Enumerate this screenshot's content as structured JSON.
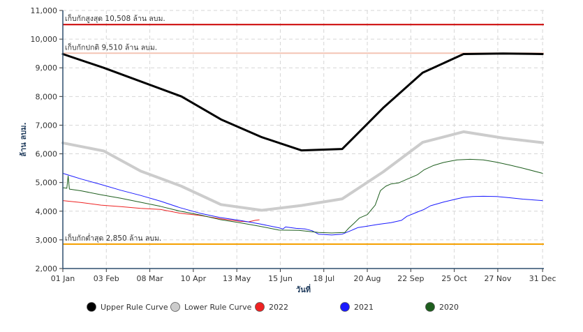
{
  "chart_data": {
    "type": "line",
    "xlabel": "วันที่",
    "ylabel": "ล้าน ลบม.",
    "ylim": [
      2000,
      11000
    ],
    "yticks": [
      2000,
      3000,
      4000,
      5000,
      6000,
      7000,
      8000,
      9000,
      10000,
      11000
    ],
    "ytick_labels": [
      "2,000",
      "3,000",
      "4,000",
      "5,000",
      "6,000",
      "7,000",
      "8,000",
      "9,000",
      "10,000",
      "11,000"
    ],
    "xlim_day": [
      1,
      366
    ],
    "xticks": [
      {
        "day": 1,
        "label": "01 Jan"
      },
      {
        "day": 34,
        "label": "03 Feb"
      },
      {
        "day": 67,
        "label": "08 Mar"
      },
      {
        "day": 100,
        "label": "10 Apr"
      },
      {
        "day": 133,
        "label": "13 May"
      },
      {
        "day": 166,
        "label": "15 Jun"
      },
      {
        "day": 199,
        "label": "18 Jul"
      },
      {
        "day": 232,
        "label": "20 Aug"
      },
      {
        "day": 265,
        "label": "22 Sep"
      },
      {
        "day": 298,
        "label": "25 Oct"
      },
      {
        "day": 331,
        "label": "27 Nov"
      },
      {
        "day": 365,
        "label": "31 Dec"
      }
    ],
    "grid": true,
    "legend_position": "bottom",
    "reference_lines": [
      {
        "label": "เก็บกักสูงสุด 10,508 ล้าน ลบม.",
        "value": 10508,
        "color": "#cc0000"
      },
      {
        "label": "เก็บกักปกติ 9,510 ล้าน ลบม.",
        "value": 9510,
        "color": "#f4c4b4"
      },
      {
        "label": "เก็บกักต่ำสุด 2,850 ล้าน ลบม.",
        "value": 2850,
        "color": "#f5a000"
      }
    ],
    "series": [
      {
        "name": "Upper Rule Curve",
        "color": "#000000",
        "width": 3,
        "points": [
          [
            1,
            9480
          ],
          [
            32,
            9000
          ],
          [
            91,
            8000
          ],
          [
            121,
            7200
          ],
          [
            152,
            6580
          ],
          [
            182,
            6120
          ],
          [
            213,
            6170
          ],
          [
            244,
            7600
          ],
          [
            274,
            8830
          ],
          [
            305,
            9480
          ],
          [
            335,
            9500
          ],
          [
            365,
            9480
          ]
        ]
      },
      {
        "name": "Lower Rule Curve",
        "color": "#cccccc",
        "width": 4,
        "points": [
          [
            1,
            6380
          ],
          [
            32,
            6100
          ],
          [
            60,
            5400
          ],
          [
            91,
            4870
          ],
          [
            121,
            4230
          ],
          [
            152,
            4030
          ],
          [
            182,
            4200
          ],
          [
            213,
            4430
          ],
          [
            244,
            5370
          ],
          [
            274,
            6400
          ],
          [
            305,
            6770
          ],
          [
            335,
            6550
          ],
          [
            365,
            6390
          ]
        ]
      },
      {
        "name": "2022",
        "color": "#ee2222",
        "width": 1,
        "points": [
          [
            1,
            4370
          ],
          [
            15,
            4300
          ],
          [
            30,
            4210
          ],
          [
            45,
            4160
          ],
          [
            60,
            4100
          ],
          [
            75,
            4060
          ],
          [
            90,
            3930
          ],
          [
            105,
            3850
          ],
          [
            120,
            3740
          ],
          [
            135,
            3650
          ],
          [
            142,
            3630
          ],
          [
            147,
            3680
          ],
          [
            150,
            3700
          ]
        ]
      },
      {
        "name": "2021",
        "color": "#1a1aff",
        "width": 1,
        "points": [
          [
            1,
            5320
          ],
          [
            15,
            5120
          ],
          [
            30,
            4930
          ],
          [
            45,
            4730
          ],
          [
            60,
            4550
          ],
          [
            75,
            4350
          ],
          [
            90,
            4120
          ],
          [
            105,
            3930
          ],
          [
            120,
            3780
          ],
          [
            135,
            3680
          ],
          [
            150,
            3560
          ],
          [
            165,
            3420
          ],
          [
            168,
            3380
          ],
          [
            170,
            3450
          ],
          [
            178,
            3400
          ],
          [
            185,
            3380
          ],
          [
            190,
            3320
          ],
          [
            195,
            3200
          ],
          [
            205,
            3170
          ],
          [
            213,
            3200
          ],
          [
            220,
            3330
          ],
          [
            225,
            3430
          ],
          [
            232,
            3480
          ],
          [
            240,
            3540
          ],
          [
            250,
            3600
          ],
          [
            258,
            3680
          ],
          [
            262,
            3820
          ],
          [
            270,
            3970
          ],
          [
            275,
            4060
          ],
          [
            280,
            4190
          ],
          [
            290,
            4320
          ],
          [
            300,
            4430
          ],
          [
            305,
            4480
          ],
          [
            312,
            4510
          ],
          [
            320,
            4520
          ],
          [
            330,
            4510
          ],
          [
            340,
            4470
          ],
          [
            350,
            4420
          ],
          [
            365,
            4370
          ]
        ]
      },
      {
        "name": "2020",
        "color": "#1e5e1e",
        "width": 1,
        "points": [
          [
            1,
            4820
          ],
          [
            4,
            4800
          ],
          [
            5,
            5230
          ],
          [
            6,
            4770
          ],
          [
            15,
            4710
          ],
          [
            30,
            4570
          ],
          [
            45,
            4450
          ],
          [
            60,
            4310
          ],
          [
            75,
            4170
          ],
          [
            90,
            4000
          ],
          [
            105,
            3870
          ],
          [
            120,
            3710
          ],
          [
            135,
            3600
          ],
          [
            150,
            3480
          ],
          [
            165,
            3340
          ],
          [
            180,
            3330
          ],
          [
            195,
            3260
          ],
          [
            205,
            3240
          ],
          [
            215,
            3260
          ],
          [
            218,
            3410
          ],
          [
            222,
            3580
          ],
          [
            226,
            3760
          ],
          [
            232,
            3880
          ],
          [
            238,
            4210
          ],
          [
            242,
            4720
          ],
          [
            246,
            4870
          ],
          [
            250,
            4950
          ],
          [
            256,
            4990
          ],
          [
            262,
            5110
          ],
          [
            270,
            5270
          ],
          [
            275,
            5440
          ],
          [
            282,
            5590
          ],
          [
            290,
            5700
          ],
          [
            300,
            5790
          ],
          [
            310,
            5810
          ],
          [
            320,
            5790
          ],
          [
            330,
            5710
          ],
          [
            340,
            5610
          ],
          [
            350,
            5500
          ],
          [
            365,
            5320
          ]
        ]
      }
    ]
  }
}
